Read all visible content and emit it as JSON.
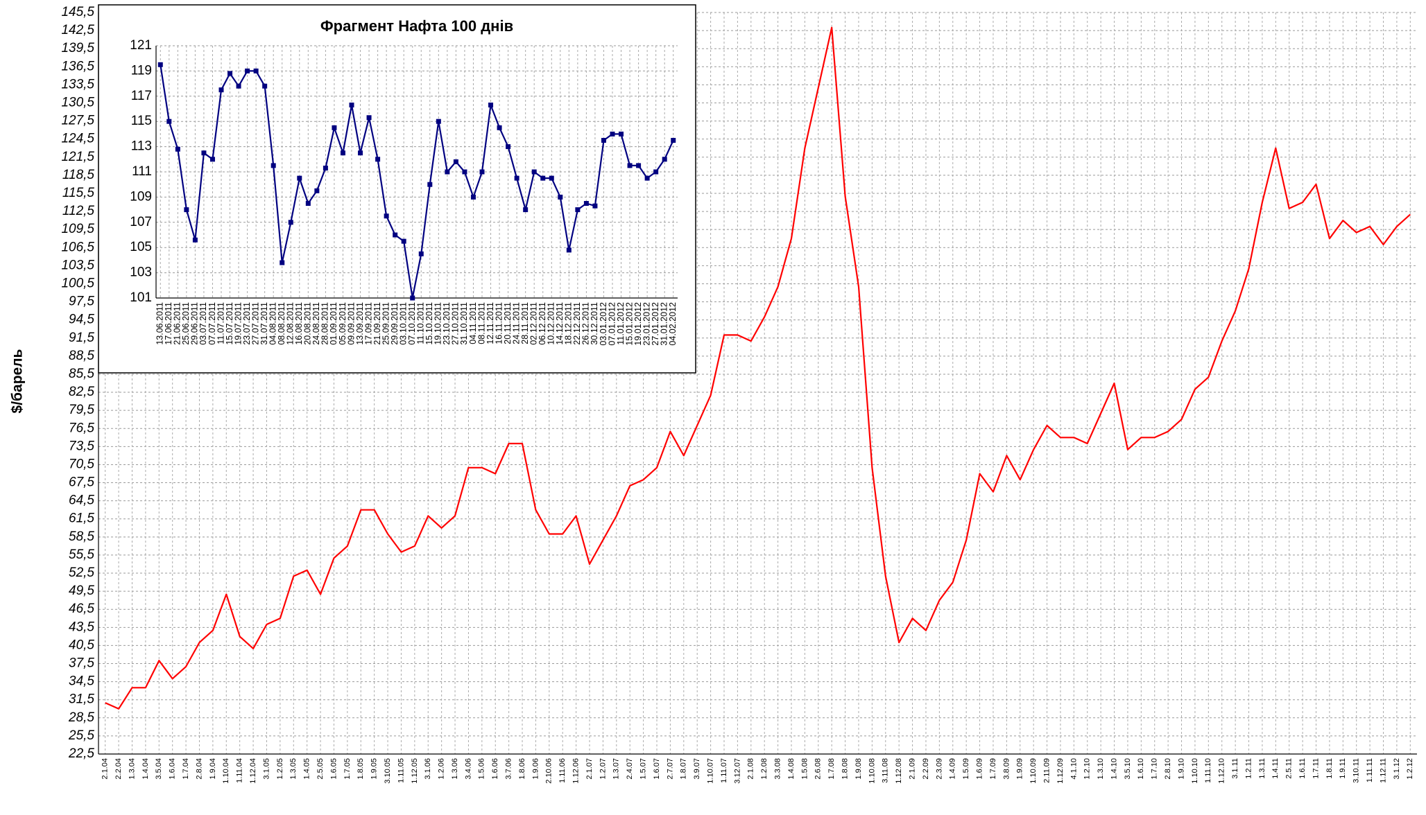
{
  "chart_data": [
    {
      "type": "line",
      "y_label": "$/барель",
      "categories": [
        "2.1.04",
        "2.2.04",
        "1.3.04",
        "1.4.04",
        "3.5.04",
        "1.6.04",
        "1.7.04",
        "2.8.04",
        "1.9.04",
        "1.10.04",
        "1.11.04",
        "1.12.04",
        "3.1.05",
        "1.2.05",
        "1.3.05",
        "1.4.05",
        "2.5.05",
        "1.6.05",
        "1.7.05",
        "1.8.05",
        "1.9.05",
        "3.10.05",
        "1.11.05",
        "1.12.05",
        "3.1.06",
        "1.2.06",
        "1.3.06",
        "3.4.06",
        "1.5.06",
        "1.6.06",
        "3.7.06",
        "1.8.06",
        "1.9.06",
        "2.10.06",
        "1.11.06",
        "1.12.06",
        "2.1.07",
        "1.2.07",
        "1.3.07",
        "2.4.07",
        "1.5.07",
        "1.6.07",
        "2.7.07",
        "1.8.07",
        "3.9.07",
        "1.10.07",
        "1.11.07",
        "3.12.07",
        "2.1.08",
        "1.2.08",
        "3.3.08",
        "1.4.08",
        "1.5.08",
        "2.6.08",
        "1.7.08",
        "1.8.08",
        "1.9.08",
        "1.10.08",
        "3.11.08",
        "1.12.08",
        "2.1.09",
        "2.2.09",
        "2.3.09",
        "1.4.09",
        "1.5.09",
        "1.6.09",
        "1.7.09",
        "3.8.09",
        "1.9.09",
        "1.10.09",
        "2.11.09",
        "1.12.09",
        "4.1.10",
        "1.2.10",
        "1.3.10",
        "1.4.10",
        "3.5.10",
        "1.6.10",
        "1.7.10",
        "2.8.10",
        "1.9.10",
        "1.10.10",
        "1.11.10",
        "1.12.10",
        "3.1.11",
        "1.2.11",
        "1.3.11",
        "1.4.11",
        "2.5.11",
        "1.6.11",
        "1.7.11",
        "1.8.11",
        "1.9.11",
        "3.10.11",
        "1.11.11",
        "1.12.11",
        "3.1.12",
        "1.2.12"
      ],
      "series": [
        {
          "color": "#ff0000",
          "values": [
            31,
            30,
            33.5,
            33.5,
            38,
            35,
            37,
            41,
            43,
            49,
            42,
            40,
            44,
            45,
            52,
            53,
            49,
            55,
            57,
            63,
            63,
            59,
            56,
            57,
            62,
            60,
            62,
            70,
            70,
            69,
            74,
            74,
            63,
            59,
            59,
            62,
            54,
            58,
            62,
            67,
            68,
            70,
            76,
            72,
            77,
            82,
            92,
            92,
            91,
            95,
            100,
            108,
            123,
            133,
            143,
            115,
            100,
            70,
            52,
            41,
            45,
            43,
            48,
            51,
            58,
            69,
            66,
            72,
            68,
            73,
            77,
            75,
            75,
            74,
            79,
            84,
            73,
            75,
            75,
            76,
            78,
            83,
            85,
            91,
            96,
            103,
            114,
            123,
            113,
            114,
            117,
            108,
            111,
            109,
            110,
            107,
            110,
            112
          ]
        }
      ],
      "ylim": [
        22.5,
        145.5
      ],
      "yticks": [
        {
          "value": 22.5,
          "label": "22,5"
        },
        {
          "value": 25.5,
          "label": "25,5"
        },
        {
          "value": 28.5,
          "label": "28,5"
        },
        {
          "value": 31.5,
          "label": "31,5"
        },
        {
          "value": 34.5,
          "label": "34,5"
        },
        {
          "value": 37.5,
          "label": "37,5"
        },
        {
          "value": 40.5,
          "label": "40,5"
        },
        {
          "value": 43.5,
          "label": "43,5"
        },
        {
          "value": 46.5,
          "label": "46,5"
        },
        {
          "value": 49.5,
          "label": "49,5"
        },
        {
          "value": 52.5,
          "label": "52,5"
        },
        {
          "value": 55.5,
          "label": "55,5"
        },
        {
          "value": 58.5,
          "label": "58,5"
        },
        {
          "value": 61.5,
          "label": "61,5"
        },
        {
          "value": 64.5,
          "label": "64,5"
        },
        {
          "value": 67.5,
          "label": "67,5"
        },
        {
          "value": 70.5,
          "label": "70,5"
        },
        {
          "value": 73.5,
          "label": "73,5"
        },
        {
          "value": 76.5,
          "label": "76,5"
        },
        {
          "value": 79.5,
          "label": "79,5"
        },
        {
          "value": 82.5,
          "label": "82,5"
        },
        {
          "value": 85.5,
          "label": "85,5"
        },
        {
          "value": 88.5,
          "label": "88,5"
        },
        {
          "value": 91.5,
          "label": "91,5"
        },
        {
          "value": 94.5,
          "label": "94,5"
        },
        {
          "value": 97.5,
          "label": "97,5"
        },
        {
          "value": 100.5,
          "label": "100,5"
        },
        {
          "value": 103.5,
          "label": "103,5"
        },
        {
          "value": 106.5,
          "label": "106,5"
        },
        {
          "value": 109.5,
          "label": "109,5"
        },
        {
          "value": 112.5,
          "label": "112,5"
        },
        {
          "value": 115.5,
          "label": "115,5"
        },
        {
          "value": 118.5,
          "label": "118,5"
        },
        {
          "value": 121.5,
          "label": "121,5"
        },
        {
          "value": 124.5,
          "label": "124,5"
        },
        {
          "value": 127.5,
          "label": "127,5"
        },
        {
          "value": 130.5,
          "label": "130,5"
        },
        {
          "value": 133.5,
          "label": "133,5"
        },
        {
          "value": 136.5,
          "label": "136,5"
        },
        {
          "value": 139.5,
          "label": "139,5"
        },
        {
          "value": 142.5,
          "label": "142,5"
        },
        {
          "value": 145.5,
          "label": "145,5"
        }
      ],
      "grid": true,
      "markers": false
    },
    {
      "type": "line",
      "title": "Фрагмент Нафта 100 днів",
      "categories": [
        "13.06.2011",
        "17.06.2011",
        "21.06.2011",
        "25.06.2011",
        "29.06.2011",
        "03.07.2011",
        "07.07.2011",
        "11.07.2011",
        "15.07.2011",
        "19.07.2011",
        "23.07.2011",
        "27.07.2011",
        "31.07.2011",
        "04.08.2011",
        "08.08.2011",
        "12.08.2011",
        "16.08.2011",
        "20.08.2011",
        "24.08.2011",
        "28.08.2011",
        "01.09.2011",
        "05.09.2011",
        "09.09.2011",
        "13.09.2011",
        "17.09.2011",
        "21.09.2011",
        "25.09.2011",
        "29.09.2011",
        "03.10.2011",
        "07.10.2011",
        "11.10.2011",
        "15.10.2011",
        "19.10.2011",
        "23.10.2011",
        "27.10.2011",
        "31.10.2011",
        "04.11.2011",
        "08.11.2011",
        "12.11.2011",
        "16.11.2011",
        "20.11.2011",
        "24.11.2011",
        "28.11.2011",
        "02.12.2011",
        "06.12.2011",
        "10.12.2011",
        "14.12.2011",
        "18.12.2011",
        "22.12.2011",
        "26.12.2011",
        "30.12.2011",
        "03.01.2012",
        "07.01.2012",
        "11.01.2012",
        "15.01.2012",
        "19.01.2012",
        "23.01.2012",
        "27.01.2012",
        "31.01.2012",
        "04.02.2012"
      ],
      "series": [
        {
          "color": "#000080",
          "values": [
            119.5,
            115,
            112.8,
            108,
            105.6,
            112.5,
            112,
            117.5,
            118.8,
            117.8,
            119,
            119,
            117.8,
            111.5,
            103.8,
            107,
            110.5,
            108.5,
            109.5,
            111.3,
            114.5,
            112.5,
            116.3,
            112.5,
            115.3,
            112,
            107.5,
            106,
            105.5,
            101,
            104.5,
            110,
            115,
            111,
            111.8,
            111,
            109,
            111,
            116.3,
            114.5,
            113,
            110.5,
            108,
            111,
            110.5,
            110.5,
            109,
            104.8,
            108,
            108.5,
            108.3,
            113.5,
            114,
            114,
            111.5,
            111.5,
            110.5,
            111,
            112,
            113.5
          ]
        }
      ],
      "ylim": [
        101,
        121
      ],
      "yticks": [
        101,
        103,
        105,
        107,
        109,
        111,
        113,
        115,
        117,
        119,
        121
      ],
      "grid": true,
      "markers": true
    }
  ]
}
